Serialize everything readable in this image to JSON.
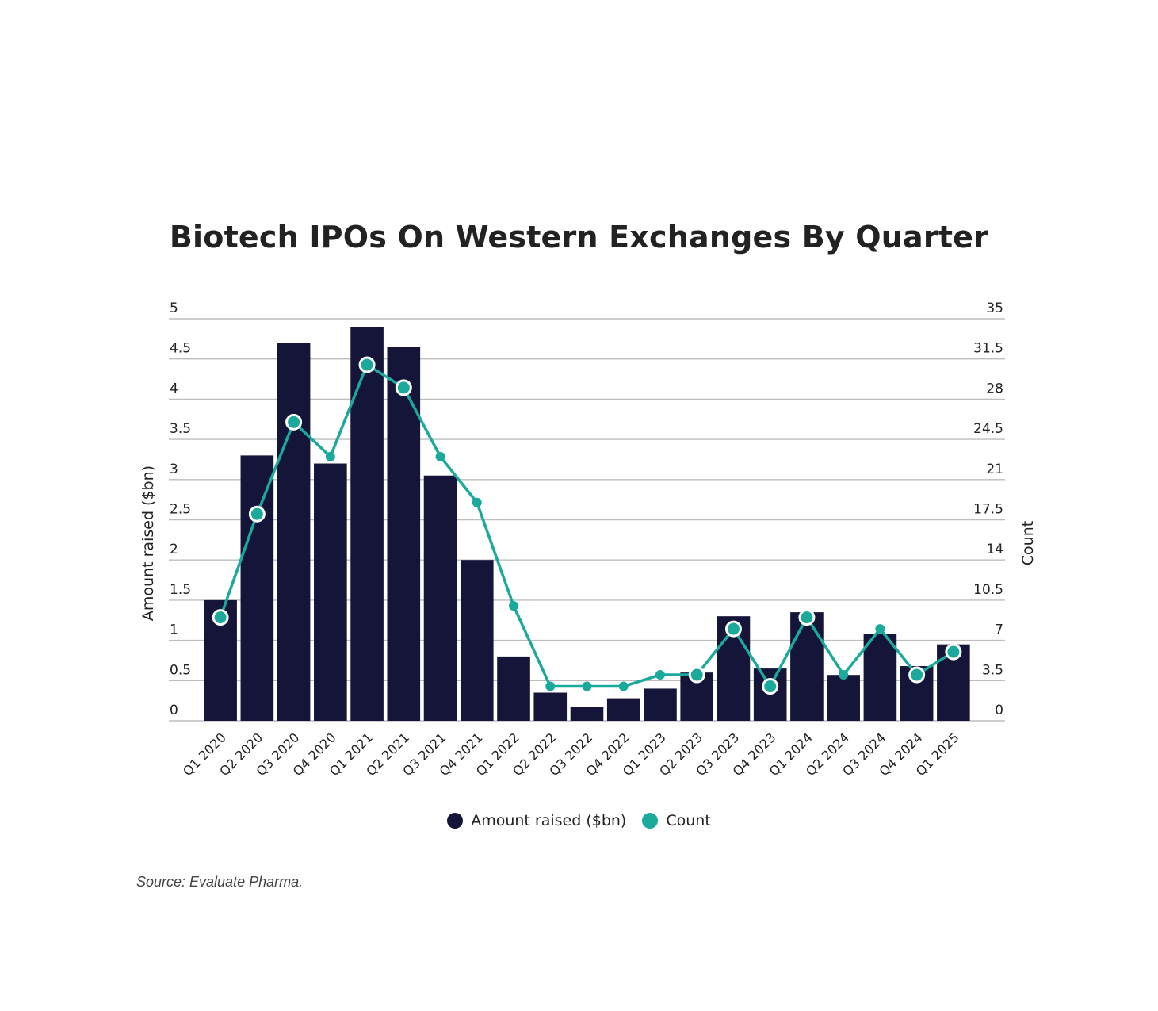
{
  "chart_data": {
    "type": "bar",
    "title": "Biotech IPOs On Western Exchanges By Quarter",
    "categories": [
      "Q1 2020",
      "Q2 2020",
      "Q3 2020",
      "Q4 2020",
      "Q1 2021",
      "Q2 2021",
      "Q3 2021",
      "Q4 2021",
      "Q1 2022",
      "Q2 2022",
      "Q3 2022",
      "Q4 2022",
      "Q1 2023",
      "Q2 2023",
      "Q3 2023",
      "Q4 2023",
      "Q1 2024",
      "Q2 2024",
      "Q3 2024",
      "Q4 2024",
      "Q1 2025"
    ],
    "series": [
      {
        "name": "Amount raised ($bn)",
        "type": "bar",
        "axis": "left",
        "color": "#15153a",
        "values": [
          1.5,
          3.3,
          4.7,
          3.2,
          4.9,
          4.65,
          3.05,
          2.0,
          0.8,
          0.35,
          0.17,
          0.28,
          0.4,
          0.6,
          1.3,
          0.65,
          1.35,
          0.57,
          1.08,
          0.68,
          0.95
        ]
      },
      {
        "name": "Count",
        "type": "line",
        "axis": "right",
        "color": "#1aa99a",
        "values": [
          9,
          18,
          26,
          23,
          31,
          29,
          23,
          19,
          10,
          3,
          3,
          3,
          4,
          4,
          8,
          3,
          9,
          4,
          8,
          4,
          6
        ]
      }
    ],
    "ylabel": "Amount raised ($bn)",
    "y2label": "Count",
    "ylim": [
      0,
      5
    ],
    "y2lim": [
      0,
      35
    ],
    "yticks": [
      "0",
      "0.5",
      "1",
      "1.5",
      "2",
      "2.5",
      "3",
      "3.5",
      "4",
      "4.5",
      "5"
    ],
    "y2ticks": [
      "0",
      "3.5",
      "7",
      "10.5",
      "14",
      "17.5",
      "21",
      "24.5",
      "28",
      "31.5",
      "35"
    ],
    "grid": true,
    "legend": "bottom-center"
  },
  "legend": [
    {
      "label": "Amount raised ($bn)",
      "color": "#15153a"
    },
    {
      "label": "Count",
      "color": "#1aa99a"
    }
  ],
  "source": "Source: Evaluate Pharma."
}
